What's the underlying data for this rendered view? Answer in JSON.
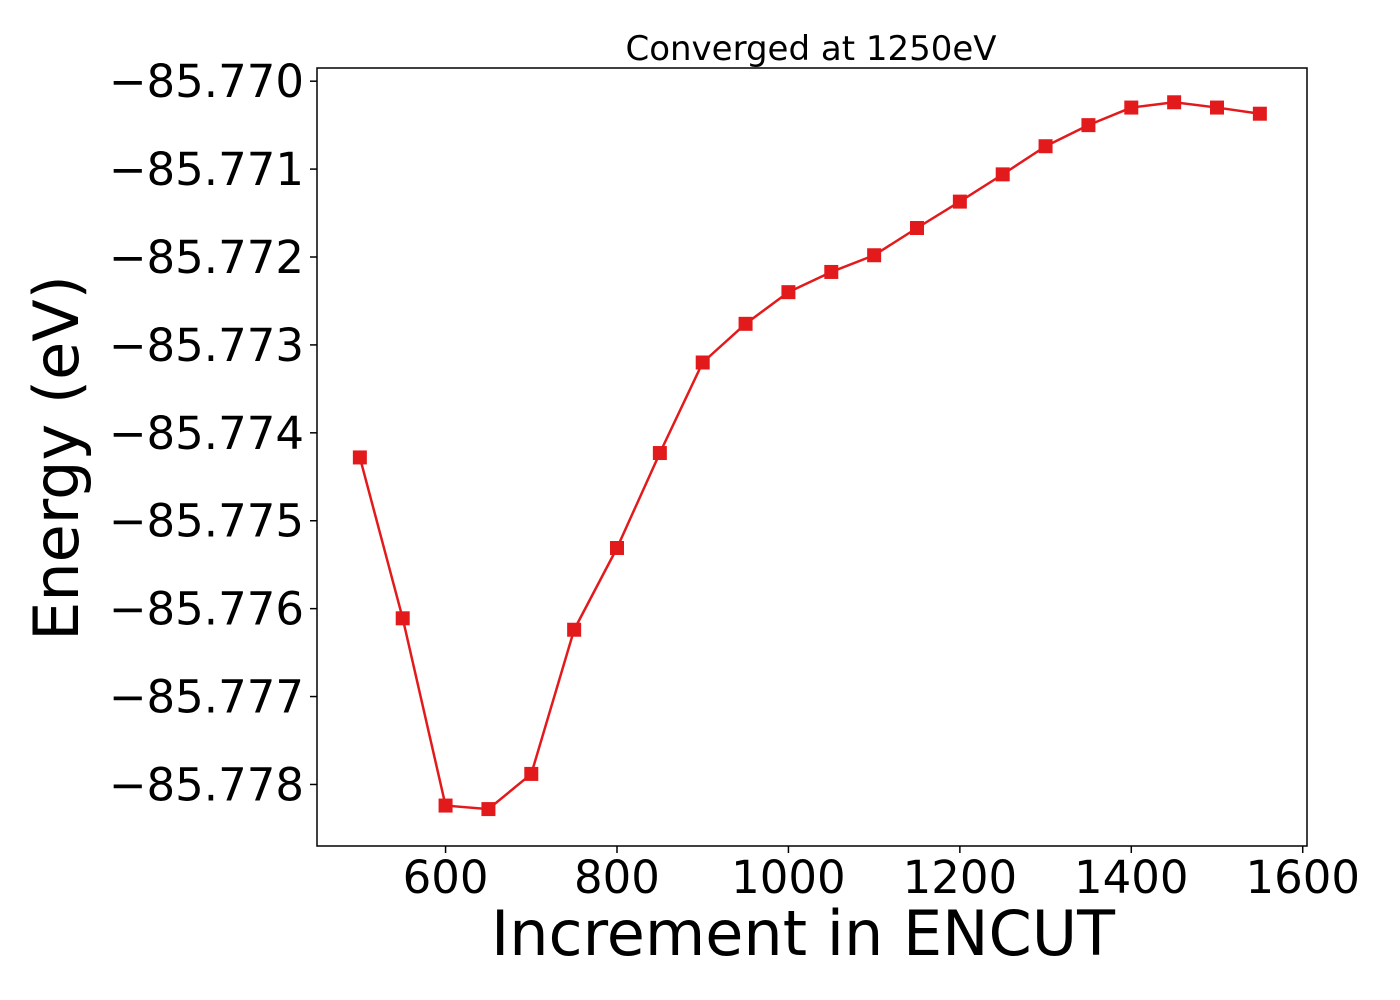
{
  "chart_data": {
    "type": "line",
    "title": "Converged at 1250eV",
    "xlabel": "Increment in ENCUT",
    "ylabel": "Energy (eV)",
    "xlim": [
      450,
      1605
    ],
    "ylim": [
      -85.7787,
      -85.76985
    ],
    "xticks": [
      600,
      800,
      1000,
      1200,
      1400,
      1600
    ],
    "xtick_labels": [
      "600",
      "800",
      "1000",
      "1200",
      "1400",
      "1600"
    ],
    "yticks": [
      -85.77,
      -85.771,
      -85.772,
      -85.773,
      -85.774,
      -85.775,
      -85.776,
      -85.777,
      -85.778
    ],
    "ytick_labels": [
      "−85.770",
      "−85.771",
      "−85.772",
      "−85.773",
      "−85.774",
      "−85.775",
      "−85.776",
      "−85.777",
      "−85.778"
    ],
    "grid": false,
    "series": [
      {
        "color": "#e31a1c",
        "marker": "square",
        "x": [
          500,
          550,
          600,
          650,
          700,
          750,
          800,
          850,
          900,
          950,
          1000,
          1050,
          1100,
          1150,
          1200,
          1250,
          1300,
          1350,
          1400,
          1450,
          1500,
          1550
        ],
        "y": [
          -85.77428,
          -85.77611,
          -85.77824,
          -85.77828,
          -85.77788,
          -85.77624,
          -85.77531,
          -85.77423,
          -85.7732,
          -85.77276,
          -85.7724,
          -85.77217,
          -85.77198,
          -85.77167,
          -85.77137,
          -85.77106,
          -85.77074,
          -85.7705,
          -85.7703,
          -85.77024,
          -85.7703,
          -85.77037
        ]
      }
    ]
  }
}
